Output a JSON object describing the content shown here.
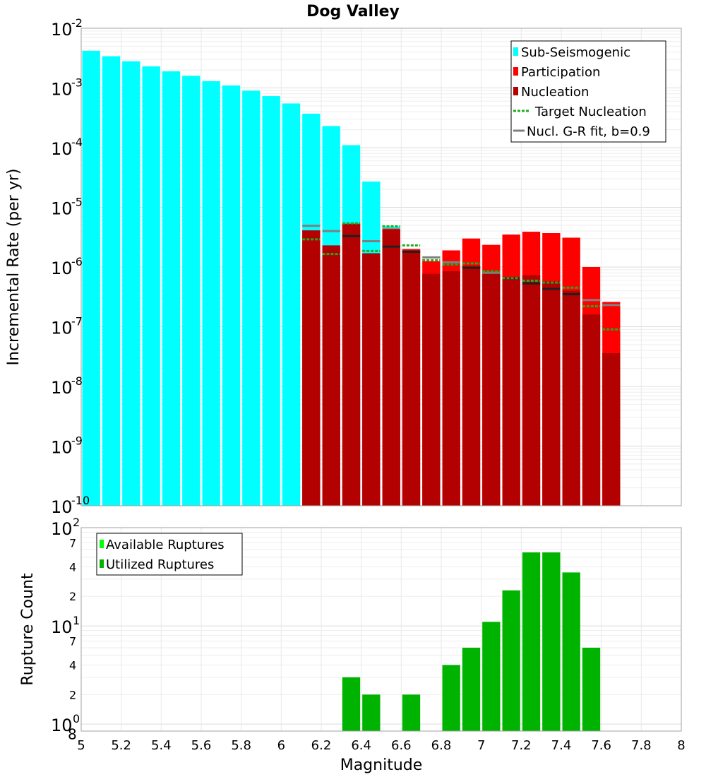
{
  "chart_data": [
    {
      "type": "bar",
      "title": "Dog Valley",
      "xlabel": "Magnitude",
      "ylabel": "Incremental Rate (per yr)",
      "yscale": "log",
      "xlim": [
        5,
        8
      ],
      "ylim": [
        1e-10,
        0.01
      ],
      "bin_width": 0.1,
      "y_tick_exponents": [
        "-2",
        "-3",
        "-4",
        "-5",
        "-6",
        "-7",
        "-8",
        "-9",
        "-10"
      ],
      "legend": {
        "position": "top-right",
        "entries": [
          "Sub-Seismogenic",
          "Participation",
          "Nucleation",
          "Target Nucleation",
          "Nucl. G-R fit, b=0.9"
        ]
      },
      "colors": {
        "sub_seismogenic": "#00ffff",
        "participation": "#ff0000",
        "nucleation": "#b30000",
        "target_nucleation": "#22aa22",
        "gr_fit": "#808080"
      },
      "series": [
        {
          "name": "Sub-Seismogenic",
          "x": [
            5.05,
            5.15,
            5.25,
            5.35,
            5.45,
            5.55,
            5.65,
            5.75,
            5.85,
            5.95,
            6.05,
            6.15,
            6.25,
            6.35,
            6.45,
            6.55
          ],
          "values": [
            0.0042,
            0.0034,
            0.0028,
            0.0023,
            0.0019,
            0.0016,
            0.0013,
            0.0011,
            0.0009,
            0.00073,
            0.00055,
            0.00037,
            0.00023,
            0.00011,
            2.7e-05,
            4.8e-06
          ]
        },
        {
          "name": "Participation",
          "x": [
            6.15,
            6.25,
            6.35,
            6.45,
            6.55,
            6.65,
            6.75,
            6.85,
            6.95,
            7.05,
            7.15,
            7.25,
            7.35,
            7.45,
            7.55,
            7.65
          ],
          "values": [
            4.1e-06,
            2.3e-06,
            5.3e-06,
            1.7e-06,
            4.4e-06,
            2e-06,
            1.25e-06,
            1.9e-06,
            3e-06,
            2.35e-06,
            3.5e-06,
            3.9e-06,
            3.7e-06,
            3.1e-06,
            1e-06,
            2.6e-07
          ]
        },
        {
          "name": "Nucleation",
          "x": [
            6.15,
            6.25,
            6.35,
            6.45,
            6.55,
            6.65,
            6.75,
            6.85,
            6.95,
            7.05,
            7.15,
            7.25,
            7.35,
            7.45,
            7.55,
            7.65
          ],
          "values": [
            4.1e-06,
            2.3e-06,
            5.3e-06,
            1.7e-06,
            4.2e-06,
            1.9e-06,
            7.7e-07,
            8.5e-07,
            1.05e-06,
            7.8e-07,
            6.8e-07,
            7.3e-07,
            5.8e-07,
            4e-07,
            1.6e-07,
            3.6e-08
          ]
        },
        {
          "name": "Target Nucleation",
          "x": [
            6.15,
            6.25,
            6.35,
            6.45,
            6.55,
            6.65,
            6.75,
            6.85,
            6.95,
            7.05,
            7.15,
            7.25,
            7.35,
            7.45,
            7.55,
            7.65
          ],
          "values": [
            2.9e-06,
            1.65e-06,
            5.4e-06,
            1.85e-06,
            4.8e-06,
            2.3e-06,
            1.3e-06,
            1.1e-06,
            1.15e-06,
            8.5e-07,
            6.5e-07,
            5.9e-07,
            5.5e-07,
            4.5e-07,
            2.2e-07,
            9e-08
          ]
        },
        {
          "name": "Nucl. G-R fit, b=0.9",
          "x": [
            6.15,
            6.25,
            6.35,
            6.45,
            6.55,
            6.65,
            6.75,
            6.85,
            6.95,
            7.05,
            7.15,
            7.25,
            7.35,
            7.45,
            7.55,
            7.65
          ],
          "values": [
            4.9e-06,
            4e-06,
            3.3e-06,
            2.7e-06,
            2.2e-06,
            1.8e-06,
            1.45e-06,
            1.2e-06,
            9.7e-07,
            8e-07,
            6.5e-07,
            5.3e-07,
            4.3e-07,
            3.5e-07,
            2.8e-07,
            2.3e-07
          ]
        }
      ]
    },
    {
      "type": "bar",
      "title": "",
      "xlabel": "Magnitude",
      "ylabel": "Rupture Count",
      "yscale": "log",
      "xlim": [
        5,
        8
      ],
      "ylim": [
        0.85,
        100
      ],
      "bin_width": 0.1,
      "x_tick_labels": [
        "5",
        "5.2",
        "5.4",
        "5.6",
        "5.8",
        "6",
        "6.2",
        "6.4",
        "6.6",
        "6.8",
        "7",
        "7.2",
        "7.4",
        "7.6",
        "7.8",
        "8"
      ],
      "y_major_tick_exponents": [
        "2",
        "1",
        "0"
      ],
      "y_minor_tick_labels": [
        "8",
        "2",
        "4",
        "7",
        "2",
        "4",
        "7"
      ],
      "legend": {
        "position": "top-left",
        "entries": [
          "Available Ruptures",
          "Utilized Ruptures"
        ]
      },
      "colors": {
        "available": "#00ff00",
        "utilized": "#00b300"
      },
      "series": [
        {
          "name": "Utilized Ruptures",
          "x": [
            6.35,
            6.45,
            6.65,
            6.85,
            6.95,
            7.05,
            7.15,
            7.25,
            7.35,
            7.45,
            7.55
          ],
          "values": [
            3,
            2,
            2,
            4,
            6,
            11,
            23,
            56,
            56,
            35,
            6
          ]
        }
      ]
    }
  ]
}
